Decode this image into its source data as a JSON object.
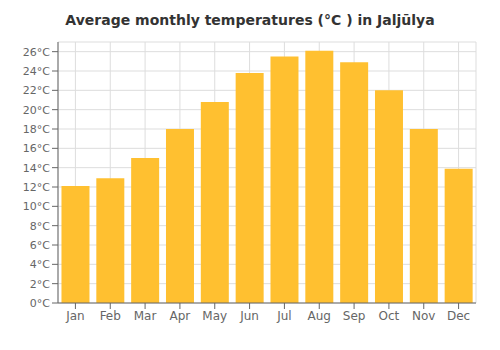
{
  "chart_data": {
    "type": "bar",
    "title": "Average monthly temperatures (°C ) in Jaljūlya",
    "categories": [
      "Jan",
      "Feb",
      "Mar",
      "Apr",
      "May",
      "Jun",
      "Jul",
      "Aug",
      "Sep",
      "Oct",
      "Nov",
      "Dec"
    ],
    "values": [
      12.1,
      12.9,
      15.0,
      18.0,
      20.8,
      23.8,
      25.5,
      26.1,
      24.9,
      22.0,
      18.0,
      13.9
    ],
    "color": "#FFC030",
    "ylim": [
      0,
      27
    ],
    "yticks": [
      {
        "value": 0,
        "label": "0°C"
      },
      {
        "value": 2,
        "label": "2°C"
      },
      {
        "value": 4,
        "label": "4°C"
      },
      {
        "value": 6,
        "label": "6°C"
      },
      {
        "value": 8,
        "label": "8°C"
      },
      {
        "value": 10,
        "label": "10°C"
      },
      {
        "value": 12,
        "label": "12°C"
      },
      {
        "value": 14,
        "label": "14°C"
      },
      {
        "value": 16,
        "label": "16°C"
      },
      {
        "value": 18,
        "label": "18°C"
      },
      {
        "value": 20,
        "label": "20°C"
      },
      {
        "value": 22,
        "label": "22°C"
      },
      {
        "value": 24,
        "label": "24°C"
      },
      {
        "value": 26,
        "label": "26°C"
      }
    ],
    "grid": true
  }
}
